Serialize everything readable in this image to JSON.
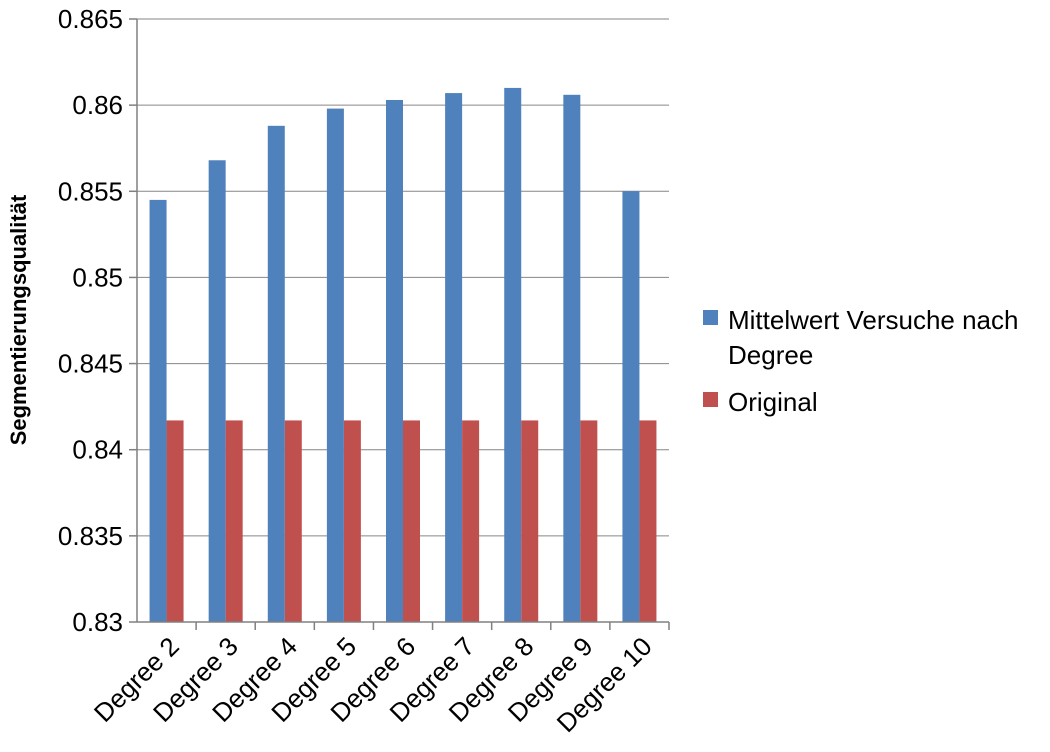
{
  "chart_data": {
    "type": "bar",
    "title": "",
    "xlabel": "",
    "ylabel": "Segmentierungsqualität",
    "ylim": [
      0.83,
      0.865
    ],
    "ytick_step": 0.005,
    "yticks": [
      "0.83",
      "0.835",
      "0.84",
      "0.845",
      "0.85",
      "0.855",
      "0.86",
      "0.865"
    ],
    "grid": true,
    "legend_position": "right",
    "categories": [
      "Degree 2",
      "Degree 3",
      "Degree 4",
      "Degree 5",
      "Degree 6",
      "Degree 7",
      "Degree 8",
      "Degree 9",
      "Degree 10"
    ],
    "series": [
      {
        "name": "Mittelwert Versuche nach Degree",
        "legend_lines": [
          "Mittelwert Versuche nach",
          "Degree"
        ],
        "color": "#4F81BD",
        "values": [
          0.8545,
          0.8568,
          0.8588,
          0.8598,
          0.8603,
          0.8607,
          0.861,
          0.8606,
          0.855
        ]
      },
      {
        "name": "Original",
        "legend_lines": [
          "Original"
        ],
        "color": "#C0504D",
        "values": [
          0.8417,
          0.8417,
          0.8417,
          0.8417,
          0.8417,
          0.8417,
          0.8417,
          0.8417,
          0.8417
        ]
      }
    ]
  }
}
